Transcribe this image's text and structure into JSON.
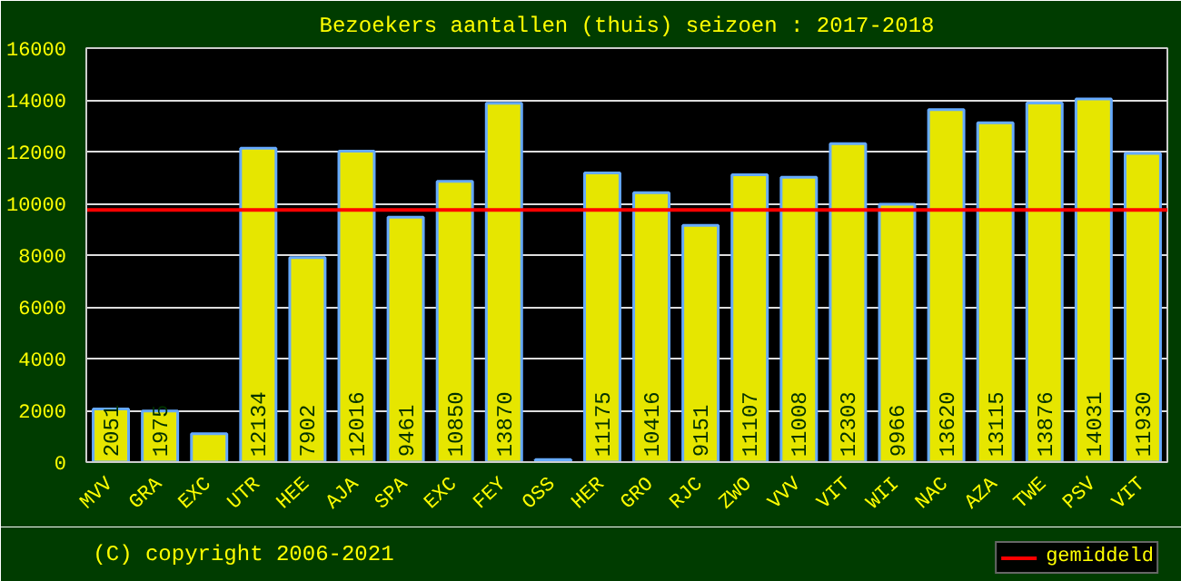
{
  "chart_data": {
    "type": "bar",
    "title": "Bezoekers aantallen (thuis) seizoen : 2017-2018",
    "categories": [
      "MVV",
      "GRA",
      "EXC",
      "UTR",
      "HEE",
      "AJA",
      "SPA",
      "EXC",
      "FEY",
      "OSS",
      "HER",
      "GRO",
      "RJC",
      "ZWO",
      "VVV",
      "VIT",
      "WII",
      "NAC",
      "AZA",
      "TWE",
      "PSV",
      "VIT"
    ],
    "values": [
      2051,
      1975,
      1100,
      12134,
      7902,
      12016,
      9461,
      10850,
      13870,
      100,
      11175,
      10416,
      9151,
      11107,
      11008,
      12303,
      9966,
      13620,
      13115,
      13876,
      14031,
      11930
    ],
    "value_labels": [
      "2051",
      "1975",
      null,
      "12134",
      "7902",
      "12016",
      "9461",
      "10850",
      "13870",
      null,
      "11175",
      "10416",
      "9151",
      "11107",
      "11008",
      "12303",
      "9966",
      "13620",
      "13115",
      "13876",
      "14031",
      "11930"
    ],
    "color": "#e6e600",
    "ylim": [
      0,
      16000
    ],
    "yticks": [
      0,
      2000,
      4000,
      6000,
      8000,
      10000,
      12000,
      14000,
      16000
    ],
    "grid": "y",
    "ref_lines": [
      {
        "axis": "y",
        "value": 9750,
        "label": "gemiddeld",
        "color": "#ff0000"
      }
    ],
    "legend": "bottom right",
    "annotations": [
      "(C) copyright 2006-2021"
    ]
  }
}
